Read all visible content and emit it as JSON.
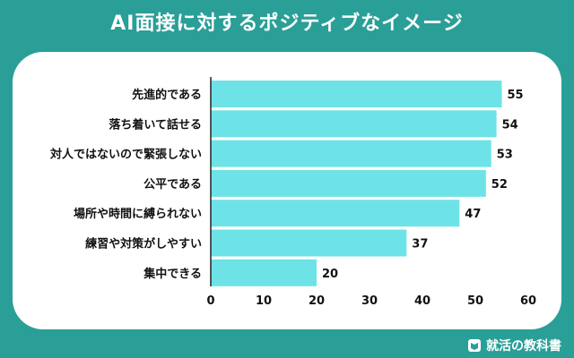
{
  "header": {
    "title": "AI面接に対するポジティブなイメージ"
  },
  "footer": {
    "brand": "就活の教科書",
    "brand_icon": "book-icon"
  },
  "colors": {
    "background": "#2a9f97",
    "panel": "#ffffff",
    "bar": "#6de3e8",
    "text": "#111111"
  },
  "chart_data": {
    "type": "bar",
    "orientation": "horizontal",
    "title": "AI面接に対するポジティブなイメージ",
    "categories": [
      "先進的である",
      "落ち着いて話せる",
      "対人ではないので緊張しない",
      "公平である",
      "場所や時間に縛られない",
      "練習や対策がしやすい",
      "集中できる"
    ],
    "values": [
      55,
      54,
      53,
      52,
      47,
      37,
      20
    ],
    "xlim": [
      0,
      60
    ],
    "xticks": [
      0,
      10,
      20,
      30,
      40,
      50,
      60
    ],
    "grid": false,
    "data_labels": true
  }
}
